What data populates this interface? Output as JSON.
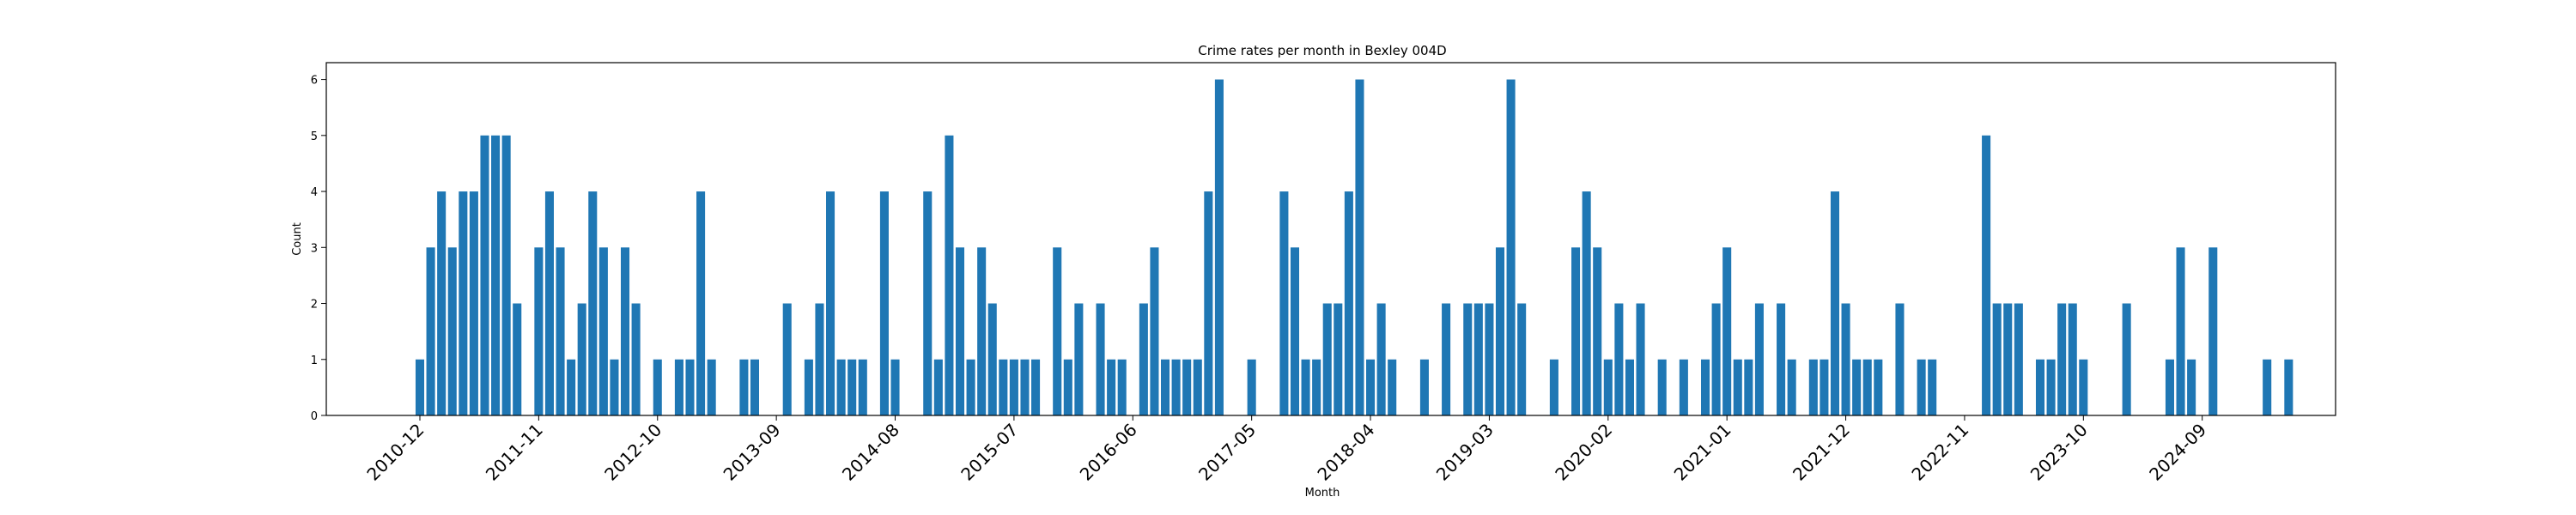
{
  "chart_data": {
    "type": "bar",
    "title": "Crime rates per month in Bexley 004D",
    "xlabel": "Month",
    "ylabel": "Count",
    "ylim": [
      0,
      6.3
    ],
    "yticks": [
      0,
      1,
      2,
      3,
      4,
      5,
      6
    ],
    "bar_color": "#1f77b4",
    "x_tick_labels": [
      "2010-12",
      "2011-11",
      "2012-10",
      "2013-09",
      "2014-08",
      "2015-07",
      "2016-06",
      "2017-05",
      "2018-04",
      "2019-03",
      "2020-02",
      "2021-01",
      "2021-12",
      "2022-11",
      "2023-10",
      "2024-09"
    ],
    "x_tick_label_rotation_deg": 45,
    "first_month": "2010-12",
    "values": [
      1,
      3,
      4,
      3,
      4,
      4,
      5,
      5,
      5,
      2,
      0,
      3,
      4,
      3,
      1,
      2,
      4,
      3,
      1,
      3,
      2,
      0,
      1,
      0,
      1,
      1,
      4,
      1,
      0,
      0,
      1,
      1,
      0,
      0,
      2,
      0,
      1,
      2,
      4,
      1,
      1,
      1,
      0,
      4,
      1,
      0,
      0,
      4,
      1,
      5,
      3,
      1,
      3,
      2,
      1,
      1,
      1,
      1,
      0,
      3,
      1,
      2,
      0,
      2,
      1,
      1,
      0,
      2,
      3,
      1,
      1,
      1,
      1,
      4,
      6,
      0,
      0,
      1,
      0,
      0,
      4,
      3,
      1,
      1,
      2,
      2,
      4,
      6,
      1,
      2,
      1,
      0,
      0,
      1,
      0,
      2,
      0,
      2,
      2,
      2,
      3,
      6,
      2,
      0,
      0,
      1,
      0,
      3,
      4,
      3,
      1,
      2,
      1,
      2,
      0,
      1,
      0,
      1,
      0,
      1,
      2,
      3,
      1,
      1,
      2,
      0,
      2,
      1,
      0,
      1,
      1,
      4,
      2,
      1,
      1,
      1,
      0,
      2,
      0,
      1,
      1,
      0,
      0,
      0,
      0,
      5,
      2,
      2,
      2,
      0,
      1,
      1,
      2,
      2,
      1,
      0,
      0,
      0,
      2,
      0,
      0,
      0,
      1,
      3,
      1,
      0,
      3,
      0,
      0,
      0,
      0,
      1,
      0,
      1
    ]
  }
}
